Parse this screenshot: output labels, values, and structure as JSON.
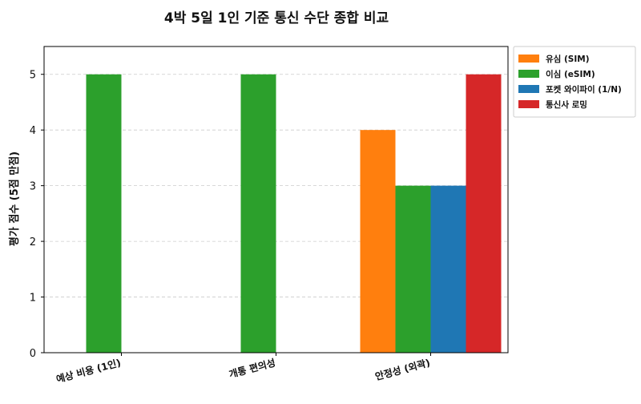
{
  "chart_data": {
    "type": "bar",
    "title": "4박 5일 1인 기준 통신 수단 종합 비교",
    "xlabel": "",
    "ylabel": "평가 점수 (5점 만점)",
    "ylim": [
      0,
      5.5
    ],
    "yticks": [
      0,
      1,
      2,
      3,
      4,
      5
    ],
    "grid": true,
    "legend_position": "top-right-outside",
    "categories": [
      "예상 비용 (1인)",
      "개통 편의성",
      "안정성 (외곽)"
    ],
    "series": [
      {
        "name": "유심 (SIM)",
        "color": "#ff7f0e",
        "values": [
          0,
          0,
          4
        ]
      },
      {
        "name": "이심 (eSIM)",
        "color": "#2ca02c",
        "values": [
          5,
          5,
          3
        ]
      },
      {
        "name": "포켓 와이파이 (1/N)",
        "color": "#1f77b4",
        "values": [
          0,
          0,
          3
        ]
      },
      {
        "name": "통신사 로밍",
        "color": "#d62728",
        "values": [
          0,
          0,
          5
        ]
      }
    ]
  }
}
